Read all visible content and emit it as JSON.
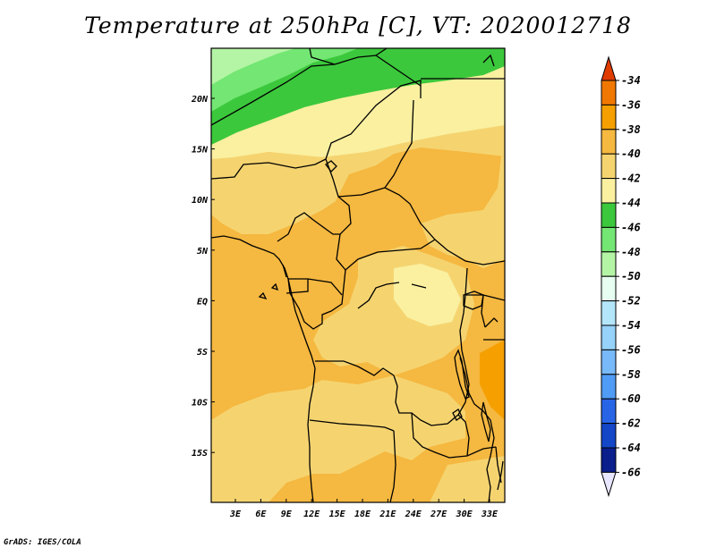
{
  "title": "Temperature at 250hPa [C], VT: 2020012718",
  "credit": "GrADS: IGES/COLA",
  "lat_labels": [
    "20N",
    "15N",
    "10N",
    "5N",
    "EQ",
    "5S",
    "10S",
    "15S"
  ],
  "lon_labels": [
    "3E",
    "6E",
    "9E",
    "12E",
    "15E",
    "18E",
    "21E",
    "24E",
    "27E",
    "30E",
    "33E"
  ],
  "colorbar": {
    "labels": [
      "-34",
      "-36",
      "-38",
      "-40",
      "-42",
      "-44",
      "-46",
      "-48",
      "-50",
      "-52",
      "-54",
      "-56",
      "-58",
      "-60",
      "-62",
      "-64",
      "-66"
    ],
    "colors": [
      "#e05000",
      "#f07800",
      "#f5a000",
      "#f5b840",
      "#f5d470",
      "#faf0a0",
      "#3cc83c",
      "#73e673",
      "#b4f5a5",
      "#e6fff0",
      "#b4e6fa",
      "#96d2fa",
      "#78b9fa",
      "#509bf5",
      "#2864e6",
      "#1446c8",
      "#0a1e8c"
    ],
    "top_arrow_color": "#e03c00",
    "bottom_arrow_color": "#e6e6ff"
  },
  "field_colors": {
    "c36": "#f5a000",
    "c38": "#f5b840",
    "c40": "#f5d470",
    "c42": "#faf0a0",
    "c44": "#3cc83c",
    "c46": "#73e673",
    "c48": "#b4f5a5"
  }
}
